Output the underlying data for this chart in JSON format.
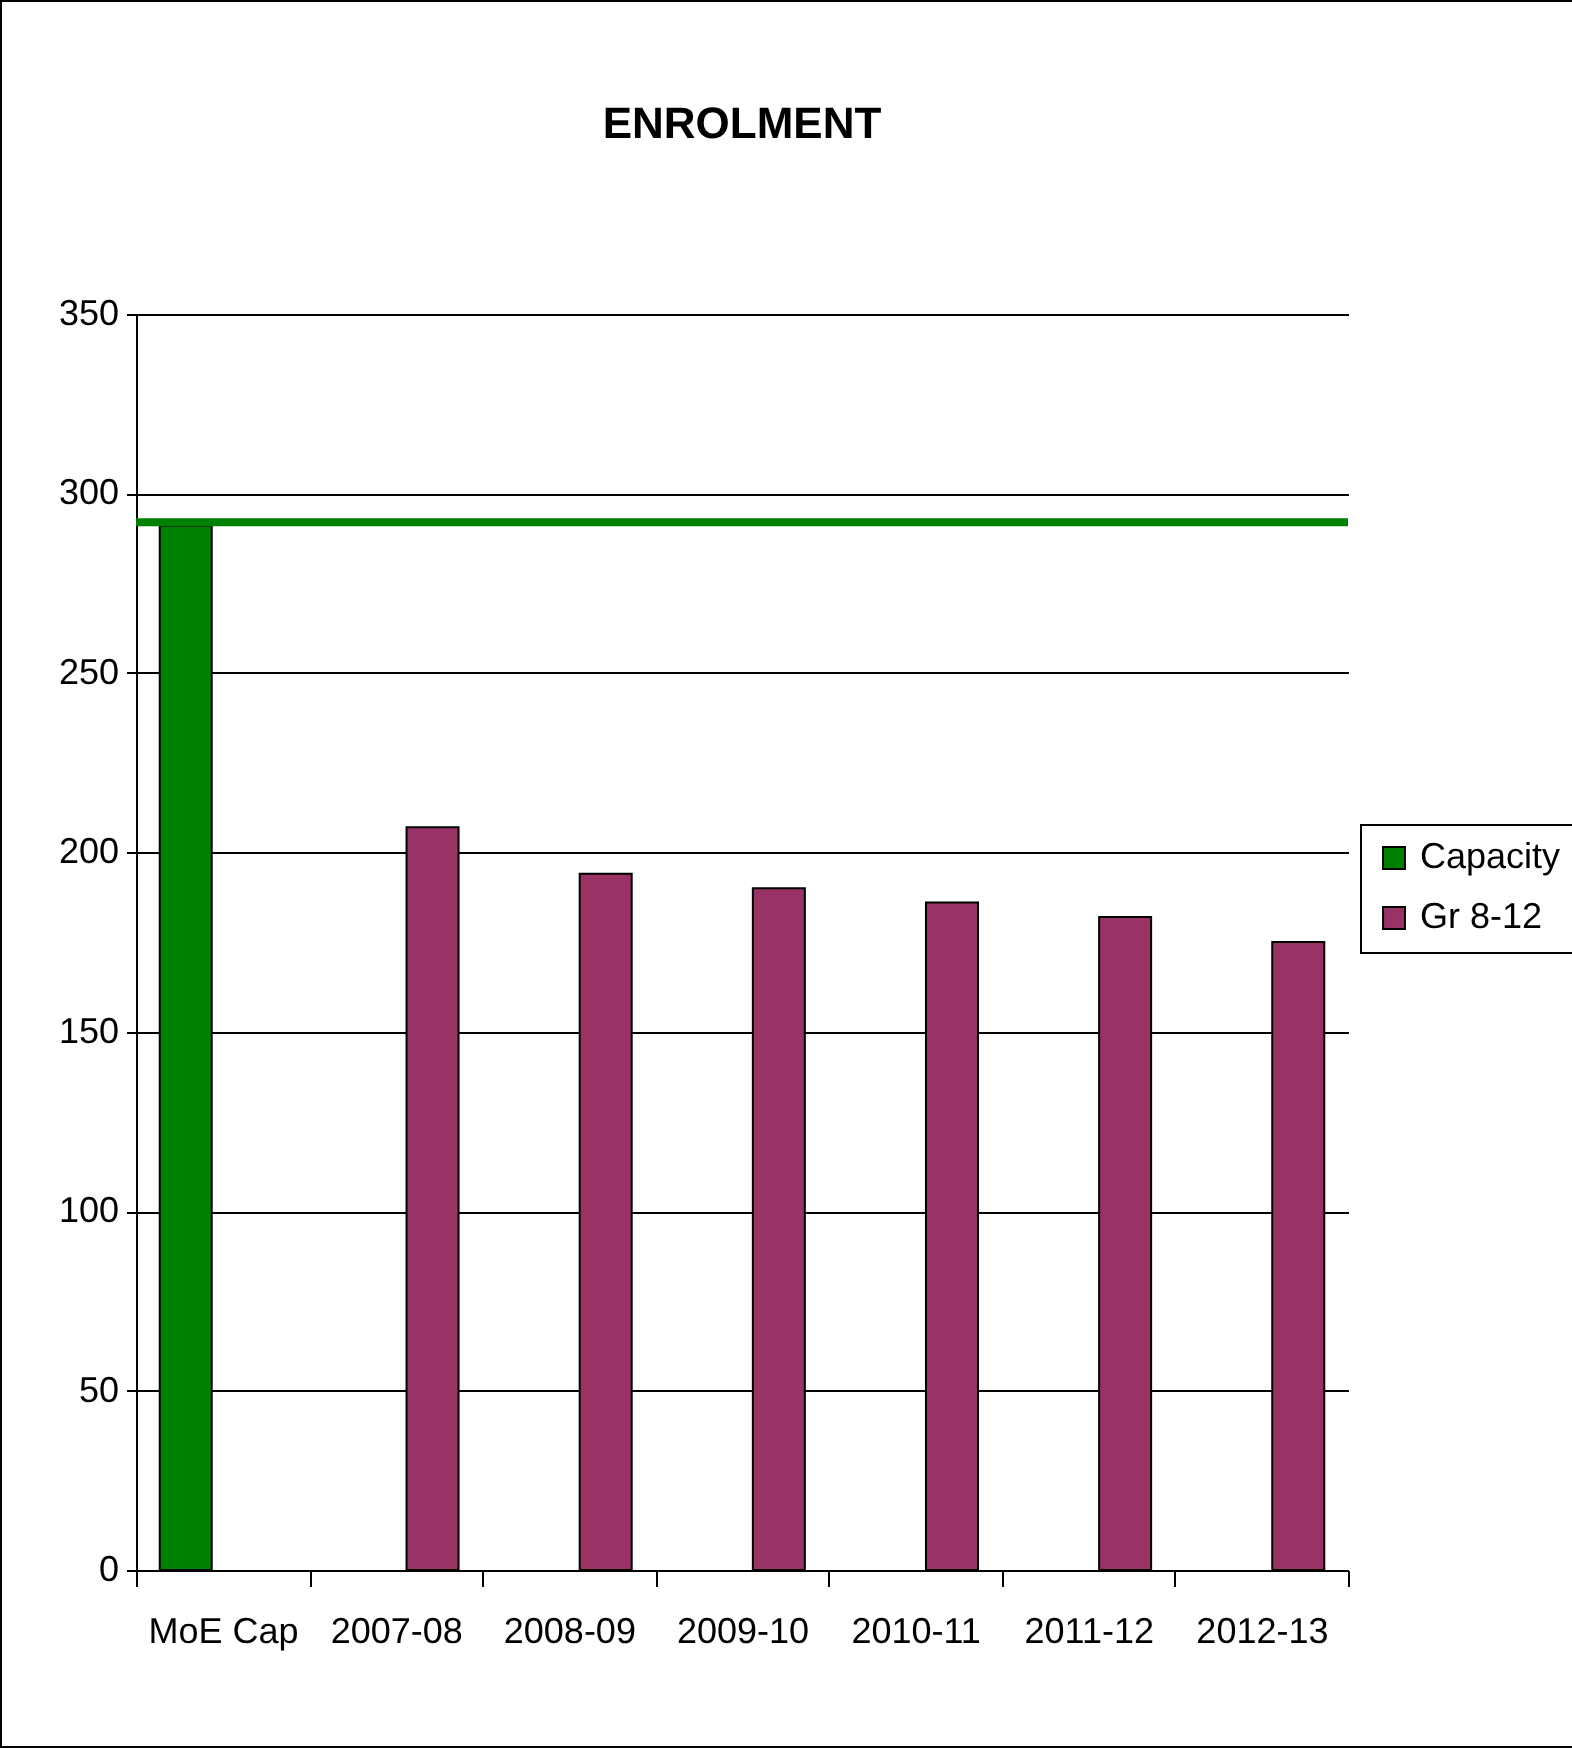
{
  "chart_data": {
    "type": "bar",
    "title": "ENROLMENT",
    "categories": [
      "MoE Cap",
      "2007-08",
      "2008-09",
      "2009-10",
      "2010-11",
      "2011-12",
      "2012-13"
    ],
    "series": [
      {
        "name": "Capacity",
        "color": "#008000",
        "values": [
          291,
          null,
          null,
          null,
          null,
          null,
          null
        ]
      },
      {
        "name": "Gr 8-12",
        "color": "#993366",
        "values": [
          null,
          207,
          194,
          190,
          186,
          182,
          175
        ]
      }
    ],
    "ylim": [
      0,
      350
    ],
    "yticks": [
      0,
      50,
      100,
      150,
      200,
      250,
      300,
      350
    ],
    "grid": "y",
    "legend": "right",
    "ref_lines": [
      {
        "axis": "y",
        "value": 292,
        "color": "#008000"
      }
    ]
  }
}
